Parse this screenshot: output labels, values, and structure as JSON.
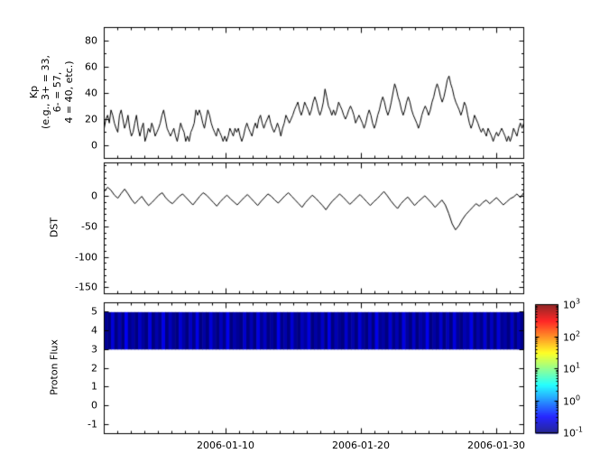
{
  "figure": {
    "background": "#ffffff",
    "frame_color": "#000000"
  },
  "xaxis": {
    "start_date": "2006-01-01",
    "span_days": 31,
    "ticks": [
      {
        "day": 9,
        "label": "2006-01-10"
      },
      {
        "day": 19,
        "label": "2006-01-20"
      },
      {
        "day": 29,
        "label": "2006-01-30"
      }
    ]
  },
  "chart_data": [
    {
      "type": "line",
      "name": "kp-index",
      "ylabel_lines": [
        "Kp",
        "(e.g., 3+ = 33,",
        "6- = 57,",
        "4 = 40, etc.)"
      ],
      "ylim": [
        -10,
        90
      ],
      "yticks": [
        {
          "value": 80,
          "label": "80"
        },
        {
          "value": 60,
          "label": "60"
        },
        {
          "value": 40,
          "label": "40"
        },
        {
          "value": 20,
          "label": "20"
        },
        {
          "value": 0,
          "label": "0"
        }
      ],
      "line_color": "#000000",
      "x_samples_per_day": 8,
      "values": [
        13,
        20,
        23,
        17,
        27,
        23,
        17,
        13,
        10,
        23,
        27,
        20,
        13,
        17,
        23,
        13,
        7,
        10,
        17,
        23,
        13,
        7,
        13,
        17,
        3,
        7,
        13,
        10,
        17,
        13,
        7,
        10,
        13,
        17,
        23,
        27,
        20,
        13,
        10,
        7,
        10,
        13,
        7,
        3,
        10,
        17,
        13,
        10,
        3,
        7,
        3,
        10,
        13,
        17,
        27,
        23,
        27,
        23,
        17,
        13,
        20,
        27,
        23,
        17,
        13,
        10,
        7,
        13,
        10,
        7,
        3,
        7,
        3,
        7,
        13,
        10,
        7,
        13,
        10,
        13,
        7,
        3,
        7,
        13,
        17,
        13,
        10,
        7,
        13,
        17,
        13,
        20,
        23,
        17,
        13,
        17,
        20,
        23,
        17,
        13,
        10,
        13,
        17,
        13,
        7,
        13,
        17,
        23,
        20,
        17,
        20,
        23,
        27,
        30,
        33,
        27,
        23,
        27,
        33,
        30,
        27,
        23,
        27,
        33,
        37,
        33,
        27,
        23,
        27,
        33,
        43,
        37,
        30,
        27,
        23,
        27,
        23,
        27,
        33,
        30,
        27,
        23,
        20,
        23,
        27,
        30,
        27,
        23,
        17,
        20,
        23,
        20,
        17,
        13,
        17,
        23,
        27,
        23,
        17,
        13,
        17,
        23,
        27,
        33,
        37,
        33,
        27,
        23,
        27,
        33,
        40,
        47,
        43,
        37,
        33,
        27,
        23,
        27,
        33,
        37,
        33,
        27,
        23,
        20,
        17,
        13,
        17,
        23,
        27,
        30,
        27,
        23,
        27,
        33,
        37,
        43,
        47,
        43,
        37,
        33,
        37,
        43,
        50,
        53,
        47,
        43,
        37,
        33,
        30,
        27,
        23,
        27,
        33,
        30,
        23,
        17,
        13,
        17,
        23,
        20,
        17,
        13,
        10,
        13,
        10,
        7,
        13,
        10,
        7,
        3,
        7,
        10,
        7,
        10,
        13,
        10,
        7,
        3,
        7,
        3,
        7,
        13,
        10,
        7,
        13,
        17,
        13,
        17
      ]
    },
    {
      "type": "line",
      "name": "dst-index",
      "ylabel": "DST",
      "ylim": [
        -160,
        55
      ],
      "yticks": [
        {
          "value": 0,
          "label": "0"
        },
        {
          "value": -50,
          "label": "-50"
        },
        {
          "value": -100,
          "label": "-100"
        },
        {
          "value": -150,
          "label": "-150"
        }
      ],
      "line_color": "#000000",
      "x_samples_per_day": 4,
      "values": [
        8,
        15,
        10,
        2,
        -3,
        5,
        12,
        4,
        -5,
        -12,
        -6,
        0,
        -8,
        -15,
        -10,
        -4,
        2,
        6,
        -2,
        -8,
        -12,
        -6,
        0,
        4,
        -2,
        -8,
        -14,
        -7,
        0,
        6,
        2,
        -4,
        -10,
        -16,
        -9,
        -3,
        2,
        -4,
        -9,
        -14,
        -8,
        -2,
        3,
        -3,
        -9,
        -15,
        -8,
        -2,
        4,
        0,
        -6,
        -11,
        -5,
        1,
        6,
        0,
        -6,
        -12,
        -18,
        -10,
        -4,
        2,
        -3,
        -9,
        -15,
        -22,
        -14,
        -7,
        -2,
        4,
        -1,
        -7,
        -13,
        -8,
        -2,
        3,
        -3,
        -9,
        -15,
        -9,
        -4,
        2,
        8,
        1,
        -7,
        -14,
        -20,
        -12,
        -6,
        -1,
        -8,
        -15,
        -9,
        -4,
        1,
        -5,
        -11,
        -18,
        -12,
        -6,
        -14,
        -28,
        -45,
        -55,
        -48,
        -38,
        -30,
        -24,
        -18,
        -12,
        -16,
        -10,
        -6,
        -12,
        -7,
        -2,
        -8,
        -14,
        -9,
        -4,
        -1,
        4,
        -2,
        6
      ]
    },
    {
      "type": "heatmap",
      "name": "proton-flux",
      "ylabel": "Proton Flux",
      "ylim": [
        -1.5,
        5.5
      ],
      "yticks": [
        {
          "value": 5,
          "label": "5"
        },
        {
          "value": 4,
          "label": "4"
        },
        {
          "value": 3,
          "label": "3"
        },
        {
          "value": 2,
          "label": "2"
        },
        {
          "value": 1,
          "label": "1"
        },
        {
          "value": 0,
          "label": "0"
        },
        {
          "value": -1,
          "label": "-1"
        }
      ],
      "band_y": [
        3,
        5
      ],
      "x_samples_per_day": 4,
      "values": [
        0.12,
        0.08,
        0.22,
        0.1,
        0.16,
        0.07,
        0.28,
        0.11,
        0.14,
        0.09,
        0.19,
        0.13,
        0.1,
        0.24,
        0.08,
        0.15,
        0.11,
        0.26,
        0.09,
        0.17,
        0.12,
        0.08,
        0.21,
        0.14,
        0.09,
        0.18,
        0.11,
        0.25,
        0.08,
        0.14,
        0.1,
        0.22,
        0.13,
        0.07,
        0.17,
        0.11,
        0.27,
        0.09,
        0.15,
        0.12,
        0.08,
        0.2,
        0.1,
        0.16,
        0.09,
        0.24,
        0.12,
        0.18,
        0.08,
        0.13,
        0.1,
        0.26,
        0.11,
        0.15,
        0.07,
        0.21,
        0.12,
        0.09,
        0.17,
        0.13,
        0.23,
        0.08,
        0.14,
        0.11,
        0.19,
        0.09,
        0.25,
        0.1,
        0.16,
        0.12,
        0.07,
        0.2,
        0.11,
        0.15,
        0.09,
        0.22,
        0.13,
        0.08,
        0.18,
        0.1,
        0.26,
        0.12,
        0.14,
        0.09,
        0.21,
        0.11,
        0.16,
        0.08,
        0.24,
        0.13,
        0.1,
        0.19,
        0.09,
        0.15,
        0.12,
        0.27,
        0.08,
        0.14,
        0.11,
        0.2,
        0.1,
        0.17,
        0.09,
        0.23,
        0.12,
        0.08,
        0.16,
        0.13,
        0.25,
        0.09,
        0.15,
        0.11,
        0.21,
        0.1,
        0.18,
        0.08,
        0.22,
        0.12,
        0.14,
        0.1,
        0.19,
        0.09,
        0.16,
        0.11
      ],
      "colorbar": {
        "cmap": "jet",
        "scale": "log",
        "vmin_exp": -1,
        "vmax_exp": 3,
        "ticks": [
          {
            "base": "10",
            "exp": "3"
          },
          {
            "base": "10",
            "exp": "2"
          },
          {
            "base": "10",
            "exp": "1"
          },
          {
            "base": "10",
            "exp": "0"
          },
          {
            "base": "10",
            "exp": "-1"
          }
        ]
      }
    }
  ]
}
